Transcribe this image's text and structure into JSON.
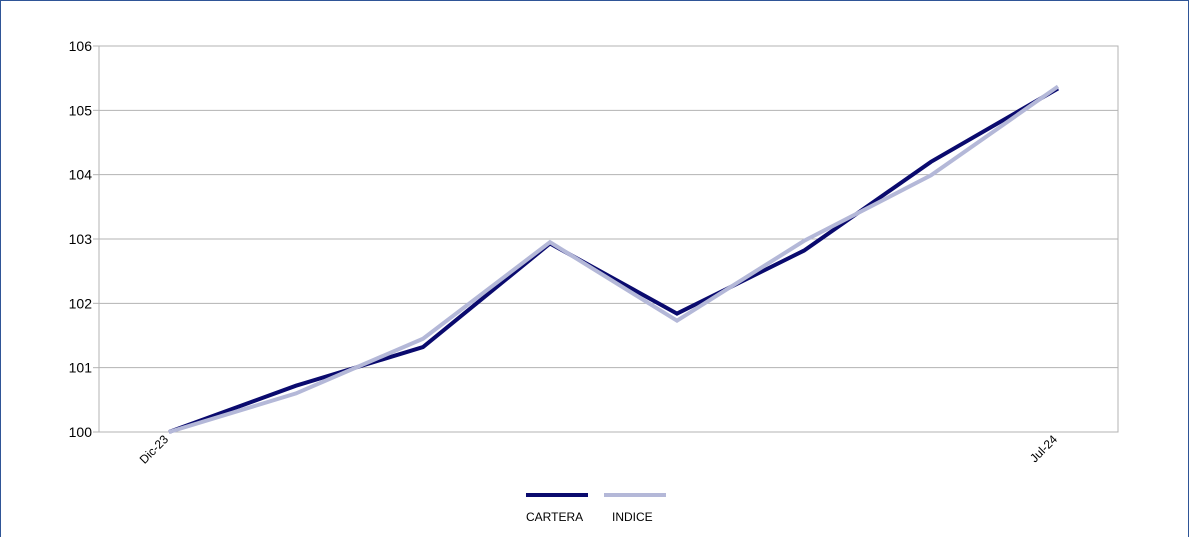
{
  "chart_data": {
    "type": "line",
    "title": "",
    "xlabel": "",
    "ylabel": "",
    "ylim": [
      100,
      106
    ],
    "yticks": [
      100,
      101,
      102,
      103,
      104,
      105,
      106
    ],
    "x_labels": [
      "Dic-23",
      "",
      "",
      "",
      "",
      "",
      "",
      "Jul-24"
    ],
    "grid": "horizontal",
    "legend_position": "bottom",
    "series": [
      {
        "name": "CARTERA",
        "color": "#0a0a6e",
        "values": [
          100.0,
          100.72,
          101.32,
          102.93,
          101.84,
          102.82,
          104.2,
          105.34
        ]
      },
      {
        "name": "INDICE",
        "color": "#b4b8d8",
        "values": [
          100.0,
          100.6,
          101.45,
          102.95,
          101.73,
          102.97,
          103.99,
          105.37
        ]
      }
    ]
  }
}
